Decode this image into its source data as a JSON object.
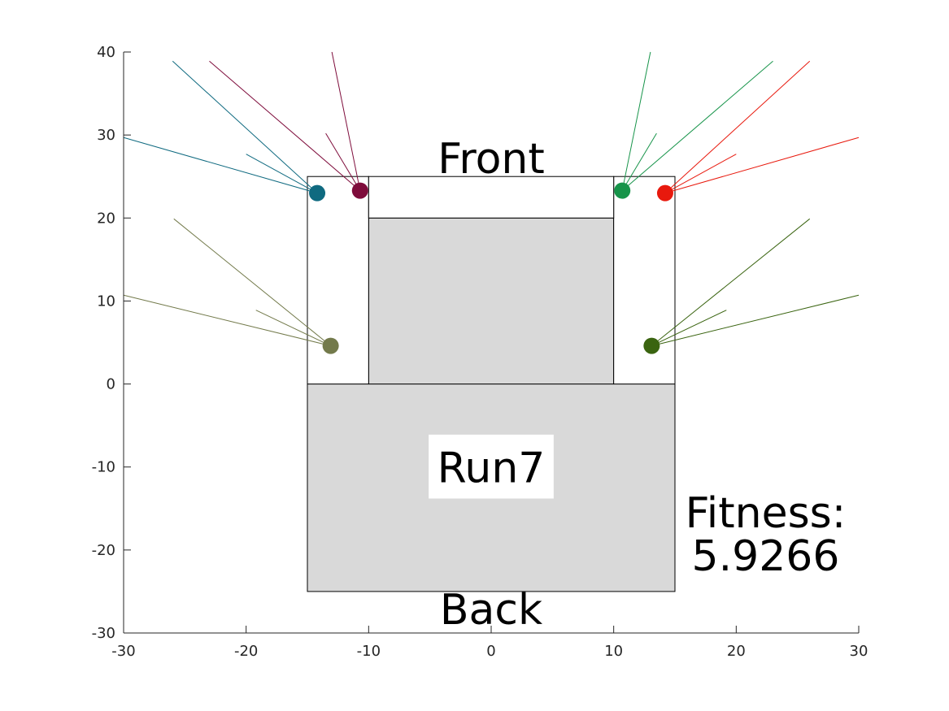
{
  "chart_data": {
    "type": "scatter",
    "xlim": [
      -30,
      30
    ],
    "ylim": [
      -30,
      40
    ],
    "x_ticks": [
      "-30",
      "-20",
      "-10",
      "0",
      "10",
      "20",
      "30"
    ],
    "y_ticks": [
      "-30",
      "-20",
      "-10",
      "0",
      "10",
      "20",
      "30",
      "40"
    ],
    "grid": false,
    "labels": {
      "front": "Front",
      "back": "Back",
      "run": "Run7",
      "fitness_label": "Fitness:",
      "fitness_value": "5.9266"
    },
    "body_regions": [
      {
        "name": "rear-block",
        "x": [
          -15,
          15
        ],
        "y": [
          -25,
          0
        ],
        "fill": "#d9d9d9"
      },
      {
        "name": "center-block",
        "x": [
          -10,
          10
        ],
        "y": [
          0,
          20
        ],
        "fill": "#d9d9d9"
      },
      {
        "name": "left-column",
        "x": [
          -15,
          -10
        ],
        "y": [
          0,
          25
        ],
        "fill": "#ffffff"
      },
      {
        "name": "right-column",
        "x": [
          10,
          15
        ],
        "y": [
          0,
          25
        ],
        "fill": "#ffffff"
      },
      {
        "name": "front-strip",
        "x": [
          -10,
          10
        ],
        "y": [
          20,
          25
        ],
        "fill": "#ffffff"
      }
    ],
    "sensors": [
      {
        "name": "sensor-front-left-outer",
        "x": -14.2,
        "y": 23.0,
        "color": "#0f6a80",
        "rays": [
          [
            -30,
            29.7
          ],
          [
            -20,
            27.7
          ],
          [
            -26,
            38.9
          ]
        ]
      },
      {
        "name": "sensor-front-left-inner",
        "x": -10.7,
        "y": 23.3,
        "color": "#7e0c3b",
        "rays": [
          [
            -23,
            38.9
          ],
          [
            -13.5,
            30.2
          ],
          [
            -13,
            40
          ]
        ]
      },
      {
        "name": "sensor-front-right-inner",
        "x": 10.7,
        "y": 23.3,
        "color": "#17944a",
        "rays": [
          [
            13,
            40
          ],
          [
            13.5,
            30.2
          ],
          [
            23,
            38.9
          ]
        ]
      },
      {
        "name": "sensor-front-right-outer",
        "x": 14.2,
        "y": 23.0,
        "color": "#e8190d",
        "rays": [
          [
            26,
            38.9
          ],
          [
            20,
            27.7
          ],
          [
            30,
            29.7
          ]
        ]
      },
      {
        "name": "sensor-rear-left",
        "x": -13.1,
        "y": 4.6,
        "color": "#737a4b",
        "rays": [
          [
            -30,
            10.7
          ],
          [
            -19.2,
            8.9
          ],
          [
            -25.9,
            19.9
          ]
        ]
      },
      {
        "name": "sensor-rear-right",
        "x": 13.1,
        "y": 4.6,
        "color": "#3a6410",
        "rays": [
          [
            26,
            19.9
          ],
          [
            19.2,
            8.9
          ],
          [
            30,
            10.7
          ]
        ]
      }
    ]
  }
}
